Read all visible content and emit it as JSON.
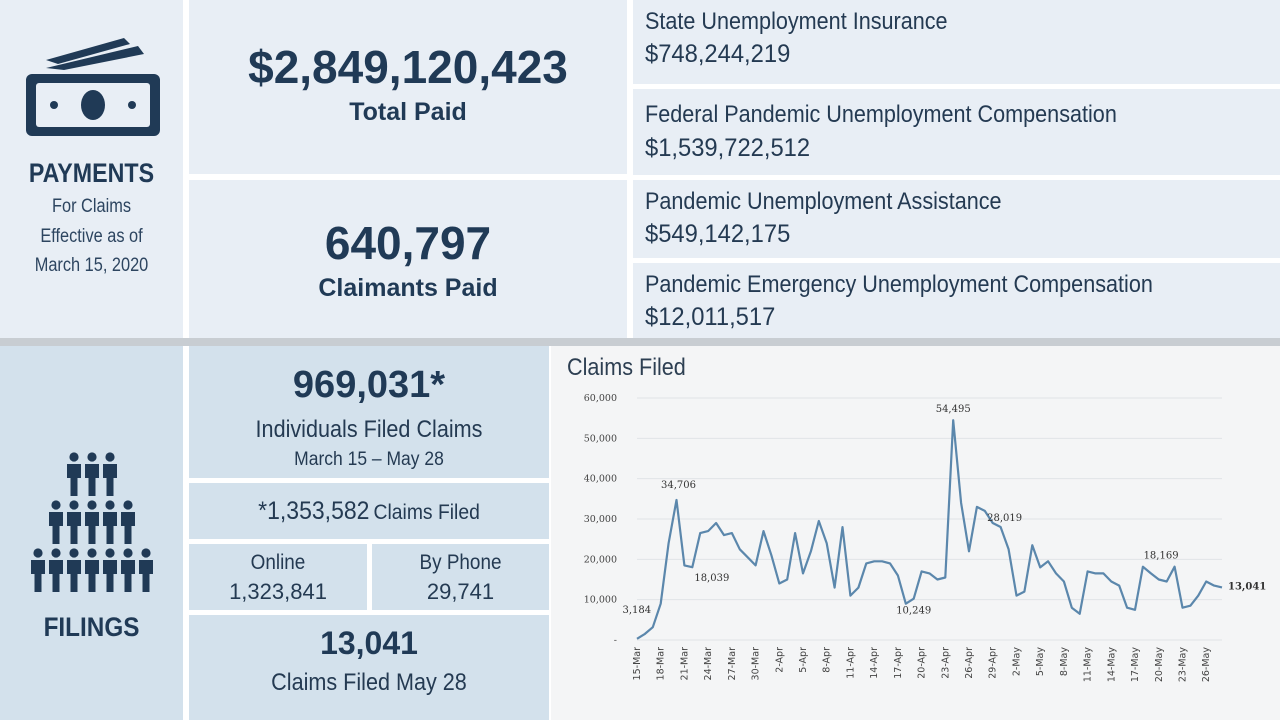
{
  "payments": {
    "title": "PAYMENTS",
    "sub1": "For Claims",
    "sub2": "Effective as of",
    "sub3": "March 15, 2020",
    "total_value": "$2,849,120,423",
    "total_label": "Total Paid",
    "claimants_value": "640,797",
    "claimants_label": "Claimants Paid",
    "programs": [
      {
        "name": "State Unemployment Insurance",
        "amount": "$748,244,219"
      },
      {
        "name": "Federal Pandemic Unemployment Compensation",
        "amount": "$1,539,722,512"
      },
      {
        "name": "Pandemic Unemployment Assistance",
        "amount": "$549,142,175"
      },
      {
        "name": "Pandemic Emergency Unemployment Compensation",
        "amount": "$12,011,517"
      }
    ]
  },
  "filings": {
    "title": "FILINGS",
    "individuals_value": "969,031*",
    "individuals_label": "Individuals Filed Claims",
    "individuals_range": "March 15 – May 28",
    "claims_filed_value": "*1,353,582",
    "claims_filed_label": "Claims Filed",
    "online_label": "Online",
    "online_value": "1,323,841",
    "phone_label": "By Phone",
    "phone_value": "29,741",
    "day_value": "13,041",
    "day_label": "Claims Filed May 28"
  },
  "icons": {
    "payments": "money-bill-icon",
    "filings": "people-group-icon"
  },
  "colors": {
    "line": "#5b87ac",
    "dark_text": "#203a56",
    "panel_light": "#e8eef5",
    "panel_mid": "#d3e1ec"
  },
  "chart_data": {
    "type": "line",
    "title": "Claims Filed",
    "xlabel": "",
    "ylabel": "",
    "ylim": [
      0,
      60000
    ],
    "yticks": [
      0,
      10000,
      20000,
      30000,
      40000,
      50000,
      60000
    ],
    "ytick_labels": [
      "-",
      "10,000",
      "20,000",
      "30,000",
      "40,000",
      "50,000",
      "60,000"
    ],
    "grid": true,
    "x": [
      "15-Mar",
      "16-Mar",
      "17-Mar",
      "18-Mar",
      "19-Mar",
      "20-Mar",
      "21-Mar",
      "22-Mar",
      "23-Mar",
      "24-Mar",
      "25-Mar",
      "26-Mar",
      "27-Mar",
      "28-Mar",
      "29-Mar",
      "30-Mar",
      "31-Mar",
      "1-Apr",
      "2-Apr",
      "3-Apr",
      "4-Apr",
      "5-Apr",
      "6-Apr",
      "7-Apr",
      "8-Apr",
      "9-Apr",
      "10-Apr",
      "11-Apr",
      "12-Apr",
      "13-Apr",
      "14-Apr",
      "15-Apr",
      "16-Apr",
      "17-Apr",
      "18-Apr",
      "19-Apr",
      "20-Apr",
      "21-Apr",
      "22-Apr",
      "23-Apr",
      "24-Apr",
      "25-Apr",
      "26-Apr",
      "27-Apr",
      "28-Apr",
      "29-Apr",
      "30-Apr",
      "1-May",
      "2-May",
      "3-May",
      "4-May",
      "5-May",
      "6-May",
      "7-May",
      "8-May",
      "9-May",
      "10-May",
      "11-May",
      "12-May",
      "13-May",
      "14-May",
      "15-May",
      "16-May",
      "17-May",
      "18-May",
      "19-May",
      "20-May",
      "21-May",
      "22-May",
      "23-May",
      "24-May",
      "25-May",
      "26-May",
      "27-May",
      "28-May"
    ],
    "tick_labels": [
      "15-Mar",
      "18-Mar",
      "21-Mar",
      "24-Mar",
      "27-Mar",
      "30-Mar",
      "2-Apr",
      "5-Apr",
      "8-Apr",
      "11-Apr",
      "14-Apr",
      "17-Apr",
      "20-Apr",
      "23-Apr",
      "26-Apr",
      "29-Apr",
      "2-May",
      "5-May",
      "8-May",
      "11-May",
      "14-May",
      "17-May",
      "20-May",
      "23-May",
      "26-May"
    ],
    "series": [
      {
        "values": [
          300,
          1500,
          3184,
          9000,
          24000,
          34706,
          18500,
          18039,
          26500,
          27000,
          29000,
          26000,
          26500,
          22500,
          20500,
          18500,
          27000,
          21000,
          14000,
          15000,
          26500,
          16500,
          22000,
          29500,
          24000,
          13000,
          28000,
          11000,
          13000,
          19000,
          19500,
          19500,
          19000,
          16000,
          9000,
          10249,
          17000,
          16500,
          15000,
          15500,
          54495,
          34000,
          22000,
          33000,
          32000,
          29000,
          28019,
          22500,
          11000,
          12000,
          23500,
          18000,
          19500,
          16500,
          14500,
          8000,
          6500,
          17000,
          16500,
          16500,
          14500,
          13500,
          8000,
          7500,
          18169,
          16500,
          15000,
          14500,
          18169,
          8000,
          8500,
          11000,
          14500,
          13500,
          13041
        ]
      }
    ],
    "annotations": [
      {
        "x": "17-Mar",
        "label": "3,184"
      },
      {
        "x": "20-Mar",
        "label": "34,706"
      },
      {
        "x": "22-Mar",
        "label": "18,039"
      },
      {
        "x": "19-Apr",
        "label": "10,249"
      },
      {
        "x": "24-Apr",
        "label": "54,495"
      },
      {
        "x": "30-Apr",
        "label": "28,019"
      },
      {
        "x": "22-May",
        "label": "18,169"
      },
      {
        "x": "28-May",
        "label": "13,041"
      }
    ]
  }
}
